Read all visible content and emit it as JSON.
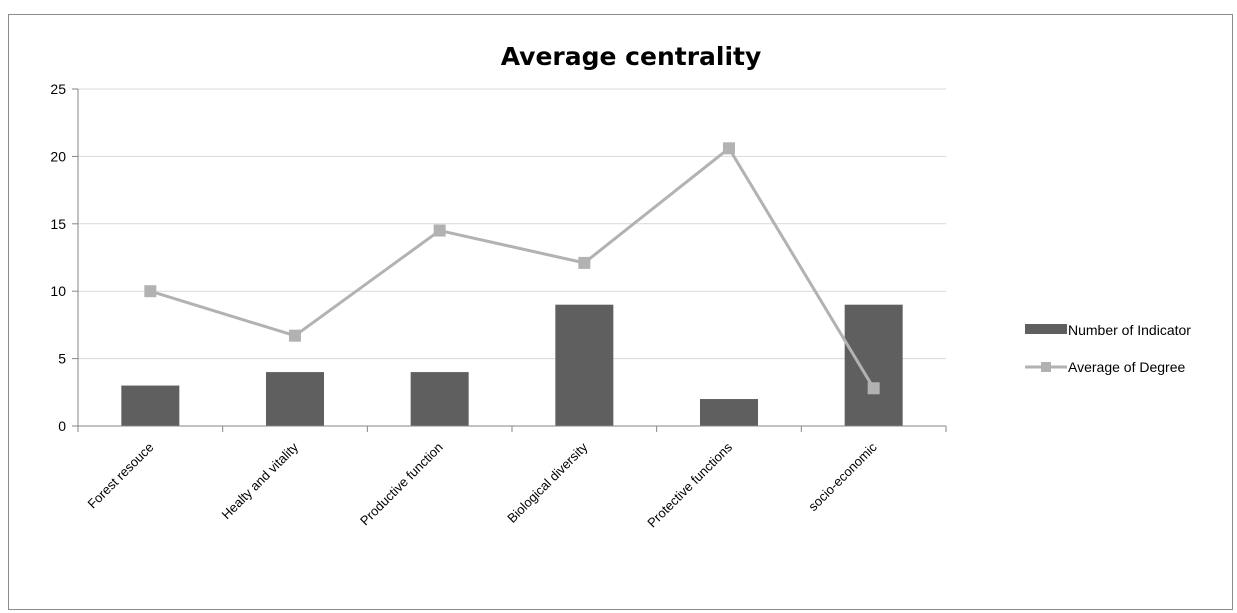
{
  "chart_data": {
    "type": "bar",
    "title": "Average centrality",
    "categories": [
      "Forest resouce",
      "Healty and vitality",
      "Productive function",
      "Biological diversity",
      "Protective functions",
      "socio-economic"
    ],
    "series": [
      {
        "name": "Number of Indicator",
        "type": "bar",
        "values": [
          3,
          4,
          4,
          9,
          2,
          9
        ]
      },
      {
        "name": "Average of Degree",
        "type": "line",
        "values": [
          10,
          6.7,
          14.5,
          12.1,
          20.6,
          2.8
        ]
      }
    ],
    "yticks": [
      "0",
      "5",
      "10",
      "15",
      "20",
      "25"
    ],
    "ylim": [
      0,
      25
    ],
    "grid": true,
    "legend_position": "right"
  },
  "colors": {
    "bar": "#5f5f5f",
    "line": "#b2b2b2",
    "marker": "#b2b2b2",
    "grid": "#d9d9d9",
    "axis": "#868686"
  }
}
